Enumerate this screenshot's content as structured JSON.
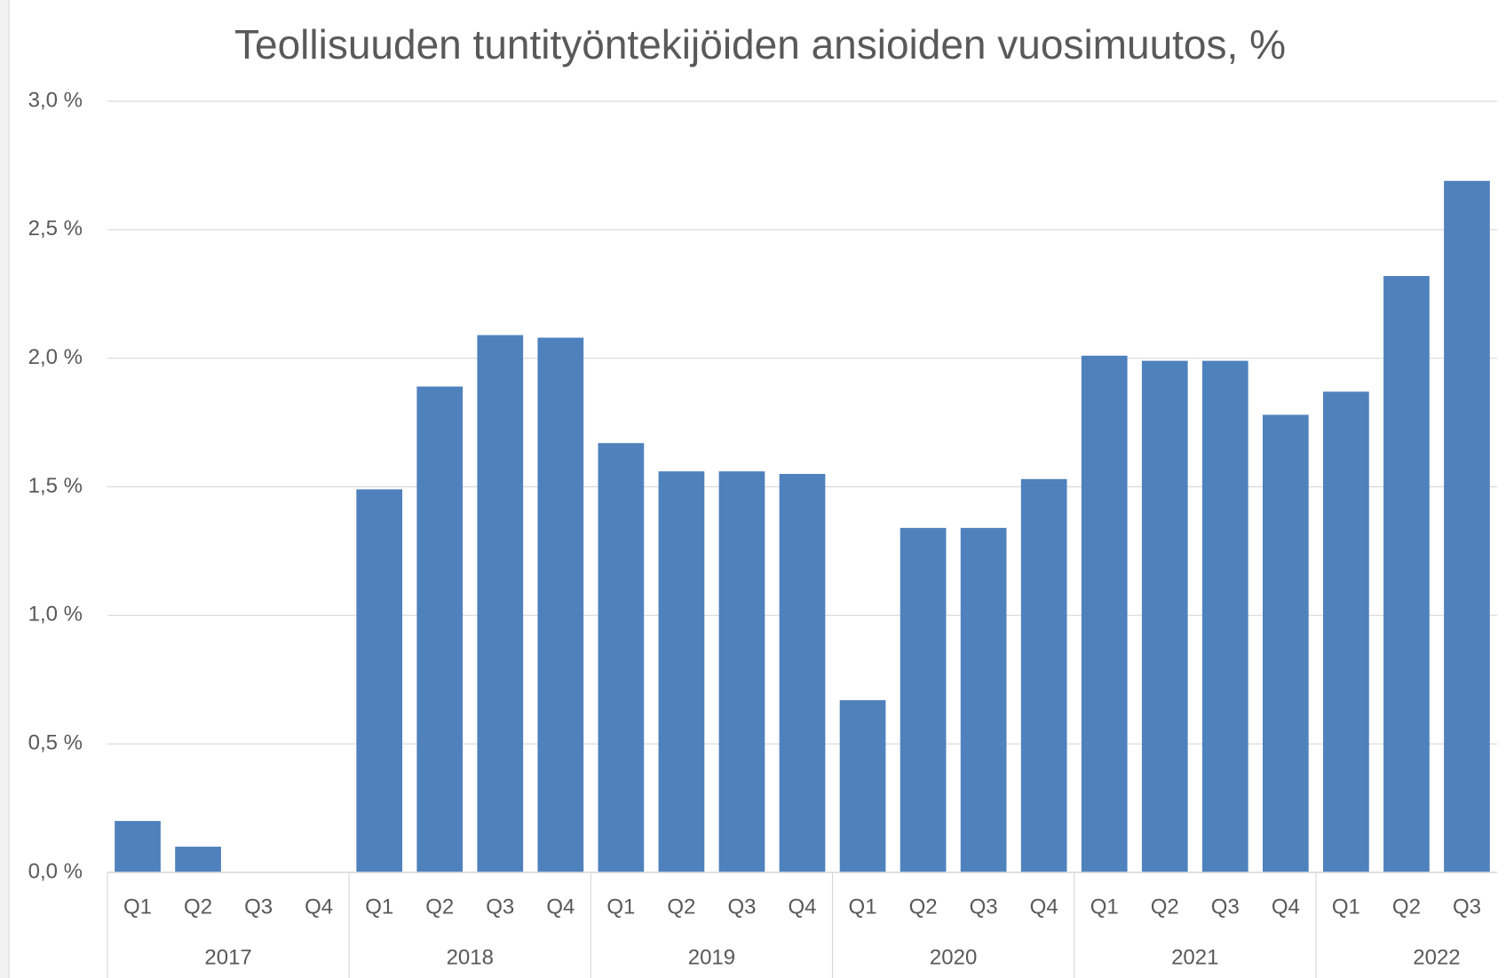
{
  "chart_data": {
    "type": "bar",
    "title": "Teollisuuden tuntityöntekijöiden ansioiden vuosimuutos, %",
    "color": "#4f81bd",
    "groups": [
      {
        "label": "2017",
        "categories": [
          "Q1",
          "Q2",
          "Q3",
          "Q4"
        ],
        "values": [
          0.2,
          0.1,
          0,
          0
        ]
      },
      {
        "label": "2018",
        "categories": [
          "Q1",
          "Q2",
          "Q3",
          "Q4"
        ],
        "values": [
          1.49,
          1.89,
          2.09,
          2.08
        ]
      },
      {
        "label": "2019",
        "categories": [
          "Q1",
          "Q2",
          "Q3",
          "Q4"
        ],
        "values": [
          1.67,
          1.56,
          1.56,
          1.55
        ]
      },
      {
        "label": "2020",
        "categories": [
          "Q1",
          "Q2",
          "Q3",
          "Q4"
        ],
        "values": [
          0.67,
          1.34,
          1.34,
          1.53
        ]
      },
      {
        "label": "2021",
        "categories": [
          "Q1",
          "Q2",
          "Q3",
          "Q4"
        ],
        "values": [
          2.01,
          1.99,
          1.99,
          1.78
        ]
      },
      {
        "label": "2022",
        "categories": [
          "Q1",
          "Q2",
          "Q3"
        ],
        "values": [
          1.87,
          2.32,
          2.69
        ]
      }
    ],
    "ylim": [
      0,
      3
    ],
    "yticks": [
      {
        "value": 0,
        "label": "0,0 %"
      },
      {
        "value": 0.5,
        "label": "0,5 %"
      },
      {
        "value": 1,
        "label": "1,0 %"
      },
      {
        "value": 1.5,
        "label": "1,5 %"
      },
      {
        "value": 2,
        "label": "2,0 %"
      },
      {
        "value": 2.5,
        "label": "2,5 %"
      },
      {
        "value": 3,
        "label": "3,0 %"
      }
    ],
    "grid": true
  }
}
